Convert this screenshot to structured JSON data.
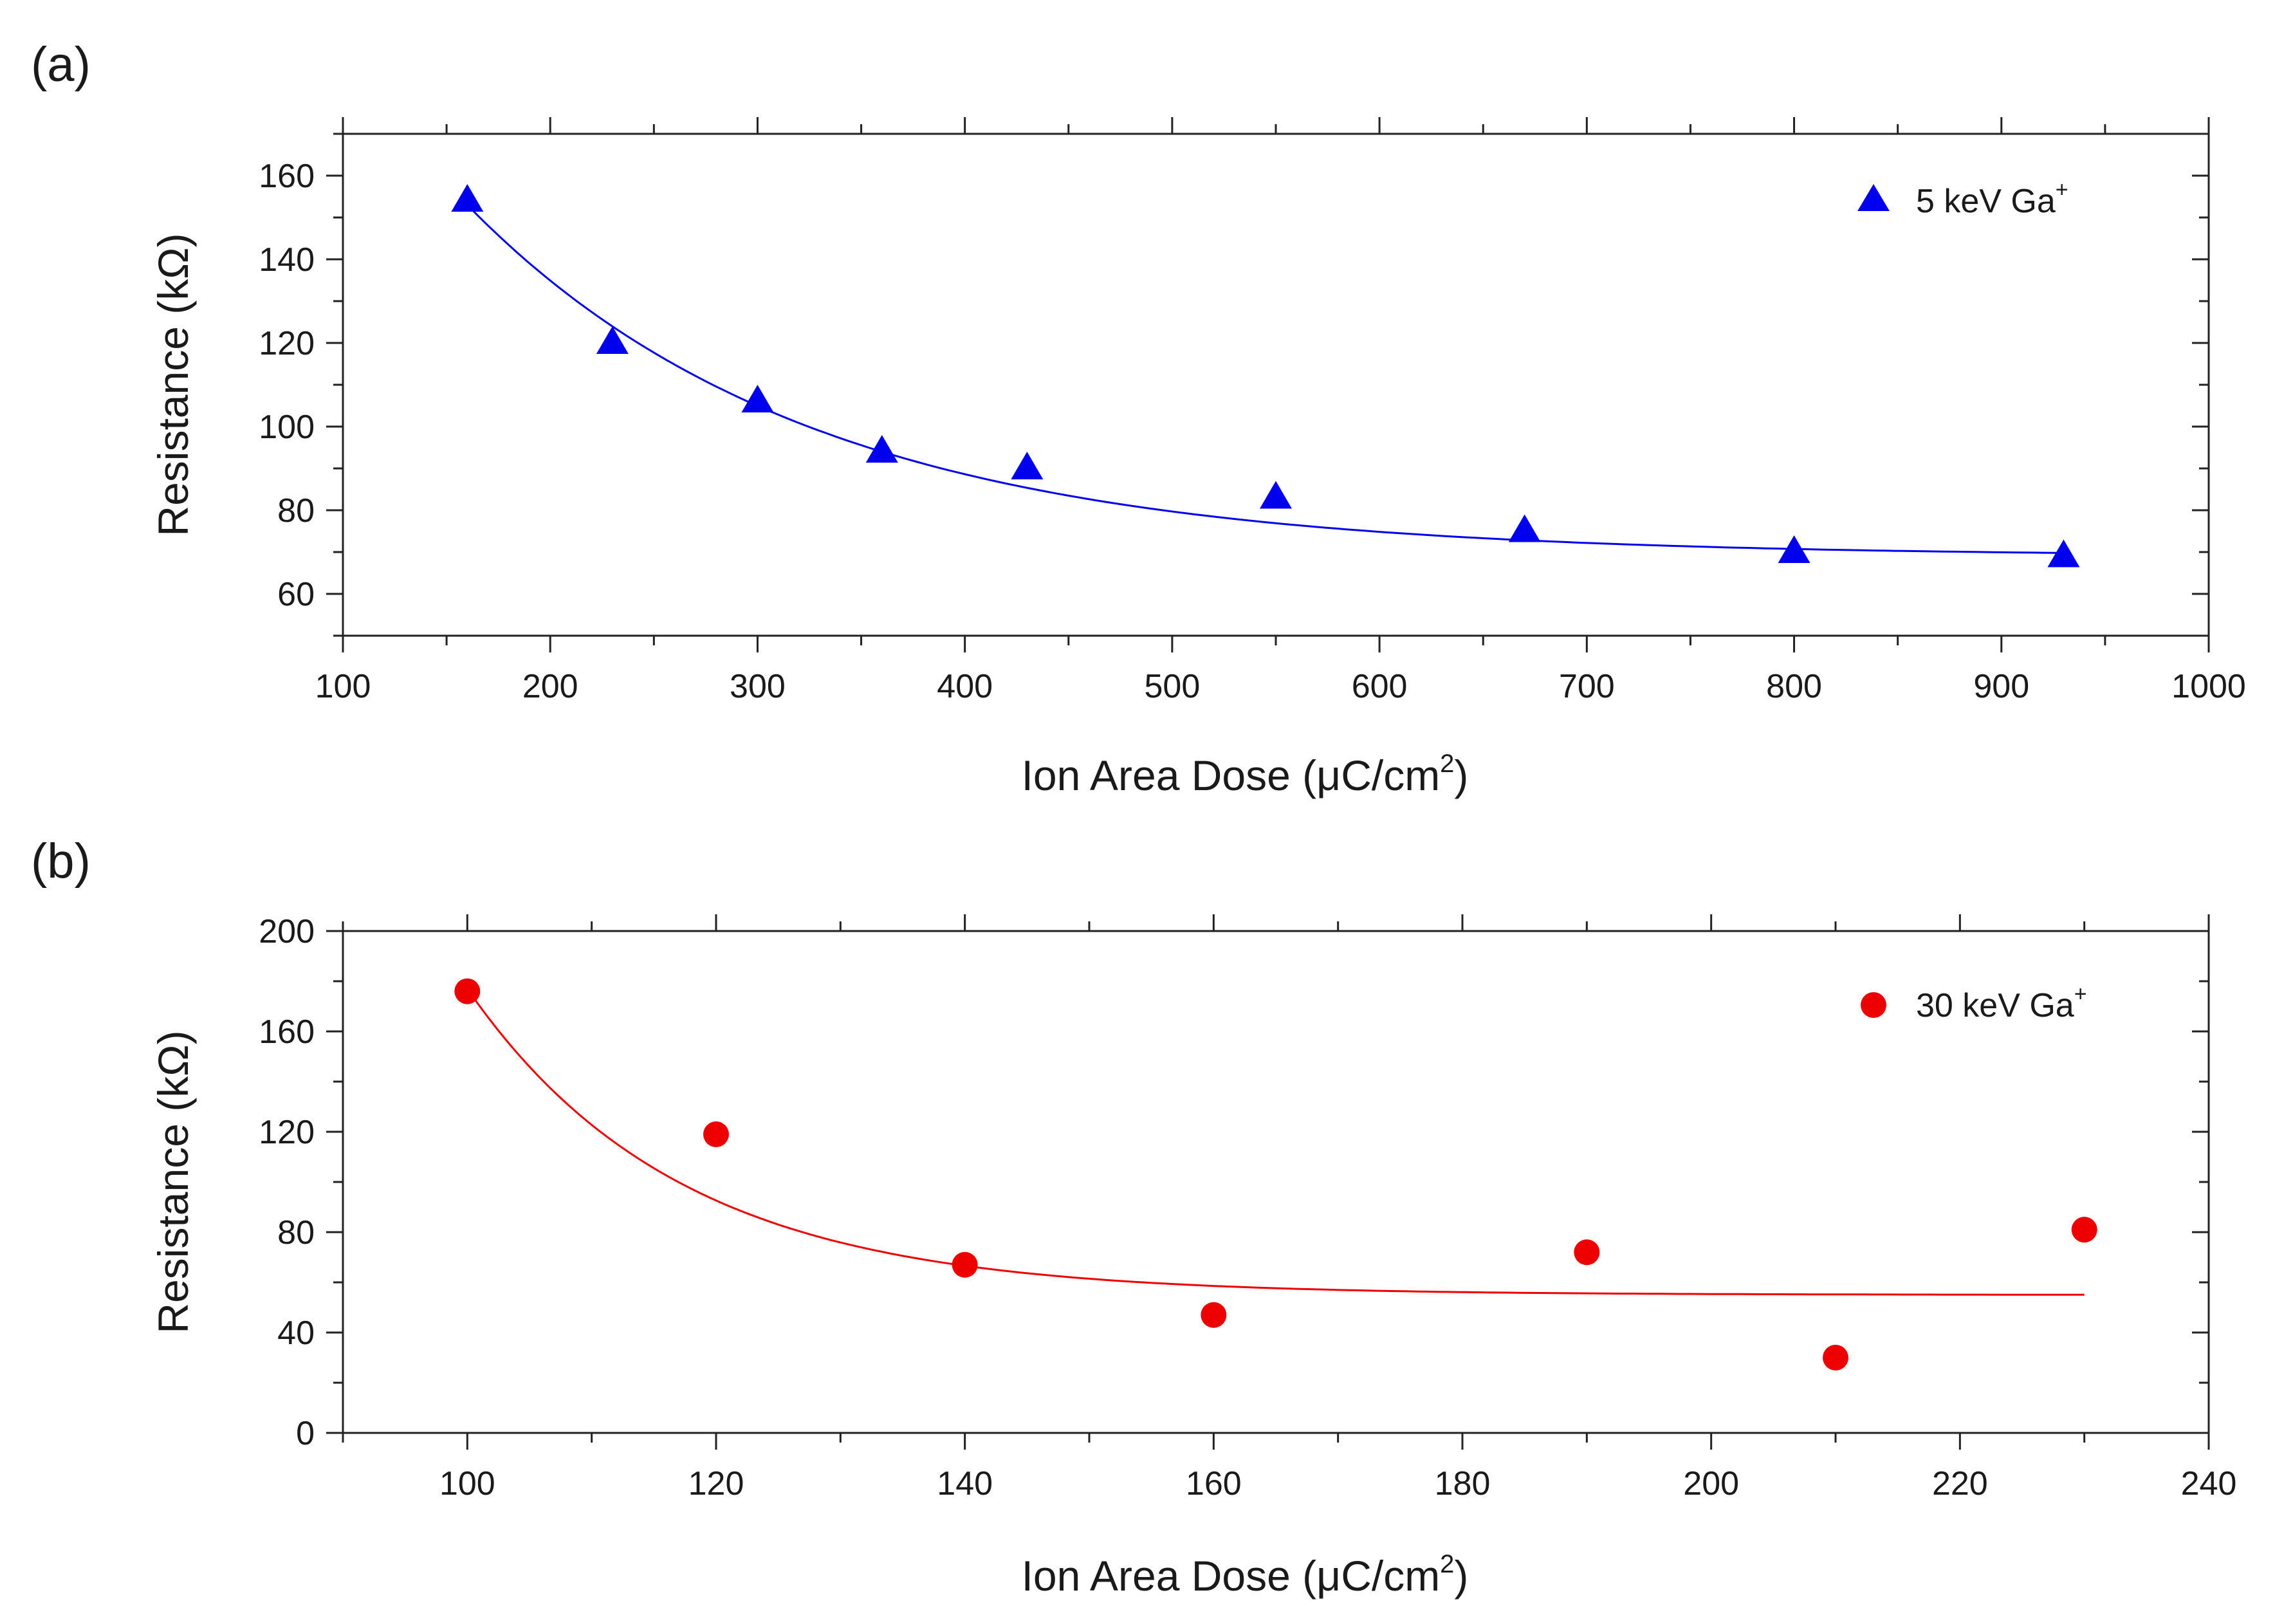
{
  "chart_data": [
    {
      "panel_label": "(a)",
      "type": "scatter",
      "xlabel": "Ion Area Dose (μC/cm",
      "xlabel_sup": "2",
      "xlabel_end": ")",
      "ylabel": "Resistance (kΩ)",
      "xlim": [
        100,
        1000
      ],
      "ylim": [
        50,
        170
      ],
      "xticks": [
        100,
        200,
        300,
        400,
        500,
        600,
        700,
        800,
        900,
        1000
      ],
      "yticks": [
        60,
        80,
        100,
        120,
        140,
        160
      ],
      "grid": false,
      "legend_position": "top-right",
      "series": [
        {
          "name": "5 keV Ga",
          "name_sup": "+",
          "marker": "triangle",
          "color": "#0000ee",
          "x": [
            160,
            230,
            300,
            360,
            430,
            550,
            670,
            800,
            930
          ],
          "y": [
            154,
            120,
            106,
            94,
            90,
            83,
            75,
            70,
            69
          ]
        }
      ],
      "fit": {
        "model": "y0 + A*exp(-(x-x0)/t)",
        "y0": 69,
        "A": 84,
        "x0": 160,
        "t": 165,
        "x_range": [
          160,
          930
        ],
        "color": "#0000ee"
      }
    },
    {
      "panel_label": "(b)",
      "type": "scatter",
      "xlabel": "Ion Area Dose (μC/cm",
      "xlabel_sup": "2",
      "xlabel_end": ")",
      "ylabel": "Resistance (kΩ)",
      "xlim": [
        90,
        240
      ],
      "ylim": [
        0,
        200
      ],
      "xticks": [
        100,
        120,
        140,
        160,
        180,
        200,
        220,
        240
      ],
      "yticks": [
        0,
        40,
        80,
        120,
        160,
        200
      ],
      "grid": false,
      "legend_position": "top-right",
      "series": [
        {
          "name": "30 keV Ga",
          "name_sup": "+",
          "marker": "circle",
          "color": "#ee0000",
          "x": [
            100,
            120,
            140,
            160,
            190,
            210,
            230
          ],
          "y": [
            176,
            119,
            67,
            47,
            72,
            30,
            81
          ]
        }
      ],
      "fit": {
        "model": "y0 + A*exp(-(x-x0)/t)",
        "y0": 55,
        "A": 122,
        "x0": 100,
        "t": 17,
        "x_range": [
          100,
          230
        ],
        "color": "#ee0000"
      }
    }
  ]
}
